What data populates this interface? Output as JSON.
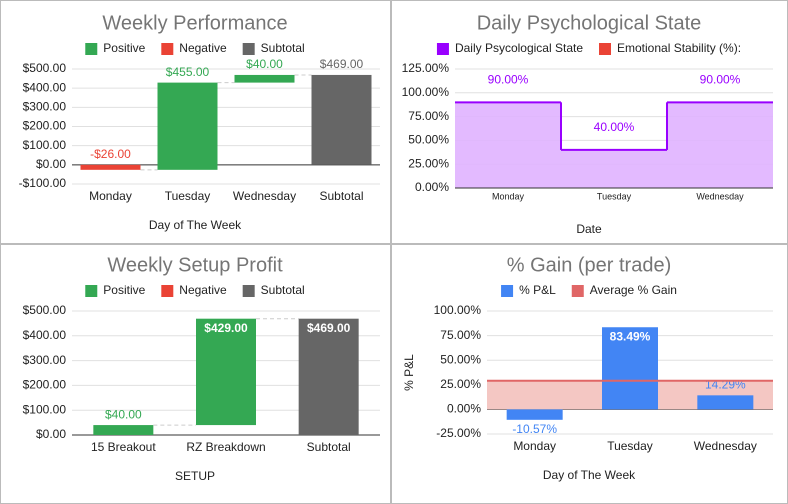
{
  "chart_data": [
    {
      "type": "waterfall",
      "title": "Weekly Performance",
      "legend": [
        {
          "name": "Positive",
          "color": "#34a853"
        },
        {
          "name": "Negative",
          "color": "#ea4335"
        },
        {
          "name": "Subtotal",
          "color": "#666666"
        }
      ],
      "categories": [
        "Monday",
        "Tuesday",
        "Wednesday"
      ],
      "values": [
        -26,
        455,
        40
      ],
      "value_labels": [
        "-$26.00",
        "$455.00",
        "$40.00"
      ],
      "subtotal": {
        "label": "Subtotal",
        "value": 469,
        "value_label": "$469.00"
      },
      "x_label": "Day of The Week",
      "label_position": "above",
      "grid": true,
      "ylim": [
        -100,
        500
      ],
      "yticks": [
        {
          "value": -100,
          "label": "-$100.00"
        },
        {
          "value": 0,
          "label": "$0.00"
        },
        {
          "value": 100,
          "label": "$100.00"
        },
        {
          "value": 200,
          "label": "$200.00"
        },
        {
          "value": 300,
          "label": "$300.00"
        },
        {
          "value": 400,
          "label": "$400.00"
        },
        {
          "value": 500,
          "label": "$500.00"
        }
      ]
    },
    {
      "type": "stepped_area",
      "title": "Daily Psychological State",
      "categories": [
        "Monday",
        "Tuesday",
        "Wednesday"
      ],
      "series": [
        {
          "name": "Daily Psycological State",
          "color": "#9900ff",
          "fill": "#e0b3ff",
          "values": [
            90,
            40,
            90
          ],
          "value_labels": [
            "90.00%",
            "40.00%",
            "90.00%"
          ]
        },
        {
          "name": "Emotional Stability (%):",
          "color": "#ea4335",
          "values": [
            null,
            null,
            null
          ]
        }
      ],
      "x_label": "Date",
      "grid": true,
      "ylim": [
        0,
        125
      ],
      "yticks": [
        {
          "value": 0,
          "label": "0.00%"
        },
        {
          "value": 25,
          "label": "25.00%"
        },
        {
          "value": 50,
          "label": "50.00%"
        },
        {
          "value": 75,
          "label": "75.00%"
        },
        {
          "value": 100,
          "label": "100.00%"
        },
        {
          "value": 125,
          "label": "125.00%"
        }
      ]
    },
    {
      "type": "waterfall",
      "title": "Weekly Setup Profit",
      "legend": [
        {
          "name": "Positive",
          "color": "#34a853"
        },
        {
          "name": "Negative",
          "color": "#ea4335"
        },
        {
          "name": "Subtotal",
          "color": "#666666"
        }
      ],
      "categories": [
        "15 Breakout",
        "RZ Breakdown"
      ],
      "values": [
        40,
        429
      ],
      "value_labels": [
        "$40.00",
        "$429.00"
      ],
      "subtotal": {
        "label": "Subtotal",
        "value": 469,
        "value_label": "$469.00"
      },
      "x_label": "SETUP",
      "label_position": "inside",
      "grid": true,
      "ylim": [
        0,
        500
      ],
      "yticks": [
        {
          "value": 0,
          "label": "$0.00"
        },
        {
          "value": 100,
          "label": "$100.00"
        },
        {
          "value": 200,
          "label": "$200.00"
        },
        {
          "value": 300,
          "label": "$300.00"
        },
        {
          "value": 400,
          "label": "$400.00"
        },
        {
          "value": 500,
          "label": "$500.00"
        }
      ]
    },
    {
      "type": "bar",
      "title": "% Gain (per trade)",
      "categories": [
        "Monday",
        "Tuesday",
        "Wednesday"
      ],
      "series": [
        {
          "name": "% P&L",
          "color": "#4285f4",
          "values": [
            -10.57,
            83.49,
            14.29
          ],
          "value_labels": [
            "-10.57%",
            "83.49%",
            "14.29%"
          ]
        },
        {
          "name": "Average % Gain",
          "color": "#e06666",
          "fill": "#f4c7c3",
          "value": 29.07
        }
      ],
      "x_label": "Day of The Week",
      "y_label": "% P&L",
      "label_position": "inside",
      "grid": true,
      "ylim": [
        -25,
        100
      ],
      "yticks": [
        {
          "value": -25,
          "label": "-25.00%"
        },
        {
          "value": 0,
          "label": "0.00%"
        },
        {
          "value": 25,
          "label": "25.00%"
        },
        {
          "value": 50,
          "label": "50.00%"
        },
        {
          "value": 75,
          "label": "75.00%"
        },
        {
          "value": 100,
          "label": "100.00%"
        }
      ]
    }
  ]
}
